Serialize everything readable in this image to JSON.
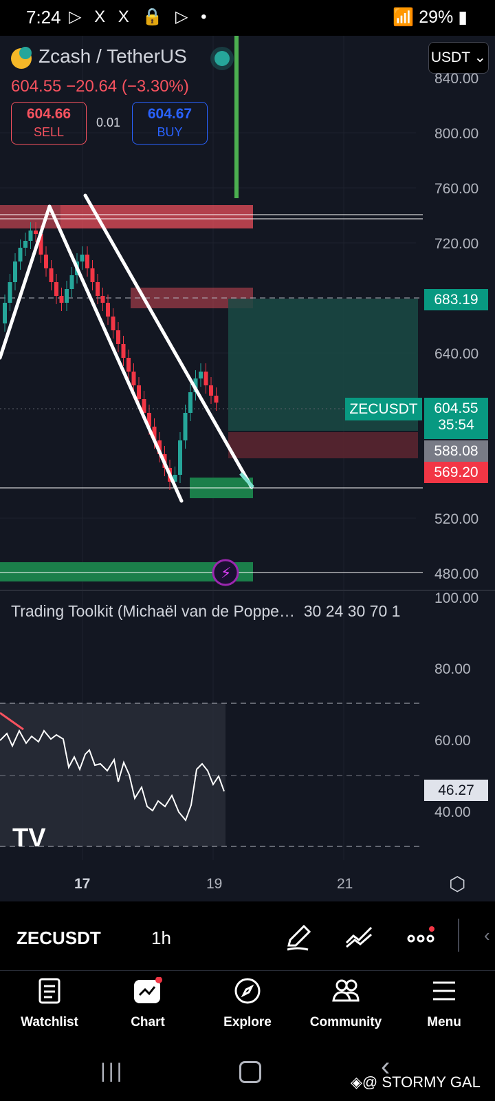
{
  "status_bar": {
    "time": "7:24",
    "battery": "29%"
  },
  "header": {
    "title": "Zcash / TetherUS",
    "last_price": "604.55",
    "change": "−20.64 (−3.30%)",
    "sell_price": "604.66",
    "sell_label": "SELL",
    "spread": "0.01",
    "buy_price": "604.67",
    "buy_label": "BUY",
    "currency_dropdown": "USDT"
  },
  "price_axis": {
    "labels": [
      "840.00",
      "800.00",
      "760.00",
      "720.00",
      "640.00",
      "520.00",
      "480.00"
    ]
  },
  "price_tags": {
    "target": "683.19",
    "symbol": "ZECUSDT",
    "current": "604.55",
    "countdown": "35:54",
    "tag_gray": "588.08",
    "stop": "569.20"
  },
  "indicator": {
    "title": "Trading Toolkit (Michaël van de Poppe…",
    "params": "30 24 30 70 1",
    "axis_labels": [
      "100.00",
      "80.00",
      "60.00",
      "40.00"
    ],
    "value": "46.27"
  },
  "time_axis": {
    "labels": [
      "17",
      "19",
      "21"
    ]
  },
  "toolbar": {
    "symbol": "ZECUSDT",
    "interval": "1h"
  },
  "bottom_nav": {
    "items": [
      {
        "label": "Watchlist",
        "icon": "list-icon"
      },
      {
        "label": "Chart",
        "icon": "chart-icon"
      },
      {
        "label": "Explore",
        "icon": "compass-icon"
      },
      {
        "label": "Community",
        "icon": "people-icon"
      },
      {
        "label": "Menu",
        "icon": "menu-icon"
      }
    ]
  },
  "watermark": "@ STORMY GAL",
  "colors": {
    "bg": "#131722",
    "red": "#f7525f",
    "blue": "#2962ff",
    "green": "#26a69a"
  }
}
